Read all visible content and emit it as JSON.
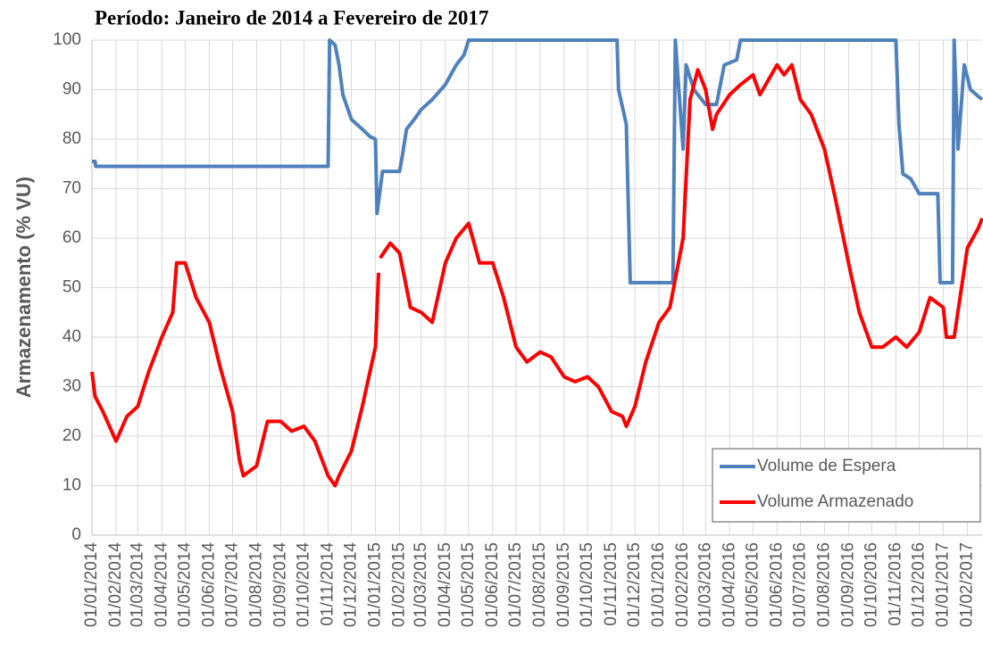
{
  "chart_data": {
    "type": "line",
    "title": "Período: Janeiro de 2014 a Fevereiro de 2017",
    "y_label": "Armazenamento (% VU)",
    "ylim": [
      0,
      100
    ],
    "yticks": [
      0,
      10,
      20,
      30,
      40,
      50,
      60,
      70,
      80,
      90,
      100
    ],
    "xlim": [
      "01/01/2014",
      "20/02/2017"
    ],
    "xticks": [
      "01/01/2014",
      "01/02/2014",
      "01/03/2014",
      "01/04/2014",
      "01/05/2014",
      "01/06/2014",
      "01/07/2014",
      "01/08/2014",
      "01/09/2014",
      "01/10/2014",
      "01/11/2014",
      "01/12/2014",
      "01/01/2015",
      "01/02/2015",
      "01/03/2015",
      "01/04/2015",
      "01/05/2015",
      "01/06/2015",
      "01/07/2015",
      "01/08/2015",
      "01/09/2015",
      "01/10/2015",
      "01/11/2015",
      "01/12/2015",
      "01/01/2016",
      "01/02/2016",
      "01/03/2016",
      "01/04/2016",
      "01/05/2016",
      "01/06/2016",
      "01/07/2016",
      "01/08/2016",
      "01/09/2016",
      "01/10/2016",
      "01/11/2016",
      "01/12/2016",
      "01/01/2017",
      "01/02/2017"
    ],
    "grid": true,
    "legend": "lower right",
    "series": [
      {
        "name": "Volume de Espera",
        "color": "#4f81bd",
        "x": [
          "01/01/2014",
          "05/01/2014",
          "06/01/2014",
          "01/11/2014",
          "03/11/2014",
          "10/11/2014",
          "15/11/2014",
          "20/11/2014",
          "01/12/2014",
          "15/12/2014",
          "25/12/2014",
          "01/01/2015",
          "03/01/2015",
          "10/01/2015",
          "01/02/2015",
          "05/02/2015",
          "10/02/2015",
          "20/02/2015",
          "01/03/2015",
          "15/03/2015",
          "01/04/2015",
          "15/04/2015",
          "25/04/2015",
          "01/05/2015",
          "08/11/2015",
          "10/11/2015",
          "20/11/2015",
          "25/11/2015",
          "19/01/2016",
          "22/01/2016",
          "01/02/2016",
          "05/02/2016",
          "15/02/2016",
          "01/03/2016",
          "15/03/2016",
          "25/03/2016",
          "10/04/2016",
          "15/04/2016",
          "01/11/2016",
          "05/11/2016",
          "10/11/2016",
          "20/11/2016",
          "01/12/2016",
          "25/12/2016",
          "28/12/2016",
          "13/01/2017",
          "15/01/2017",
          "20/01/2017",
          "28/01/2017",
          "05/02/2017",
          "20/02/2017"
        ],
        "values": [
          75.5,
          75.5,
          74.5,
          74.5,
          100,
          99,
          95,
          89,
          84,
          82,
          80.5,
          80,
          65,
          73.5,
          73.5,
          77,
          82,
          84,
          86,
          88,
          91,
          95,
          97,
          100,
          100,
          90,
          83,
          51,
          51,
          100,
          78,
          95,
          90,
          87,
          87,
          95,
          96,
          100,
          100,
          83,
          73,
          72,
          69,
          69,
          51,
          51,
          100,
          78,
          95,
          90,
          88
        ]
      },
      {
        "name": "Volume Armazenado",
        "color": "#ff0000",
        "x": [
          "01/01/2014",
          "05/01/2014",
          "15/01/2014",
          "01/02/2014",
          "15/02/2014",
          "01/03/2014",
          "15/03/2014",
          "01/04/2014",
          "15/04/2014",
          "20/04/2014",
          "01/05/2014",
          "15/05/2014",
          "01/06/2014",
          "15/06/2014",
          "01/07/2014",
          "10/07/2014",
          "15/07/2014",
          "01/08/2014",
          "15/08/2014",
          "01/09/2014",
          "15/09/2014",
          "01/10/2014",
          "15/10/2014",
          "01/11/2014",
          "10/11/2014",
          "15/11/2014",
          "01/12/2014",
          "15/12/2014",
          "01/01/2015",
          "05/01/2015",
          "06/01/2015",
          "07/01/2015",
          "20/01/2015",
          "01/02/2015",
          "15/02/2015",
          "01/03/2015",
          "15/03/2015",
          "01/04/2015",
          "15/04/2015",
          "01/05/2015",
          "15/05/2015",
          "01/06/2015",
          "15/06/2015",
          "01/07/2015",
          "15/07/2015",
          "01/08/2015",
          "15/08/2015",
          "01/09/2015",
          "15/09/2015",
          "01/10/2015",
          "15/10/2015",
          "01/11/2015",
          "15/11/2015",
          "20/11/2015",
          "01/12/2015",
          "15/12/2015",
          "01/01/2016",
          "15/01/2016",
          "01/02/2016",
          "10/02/2016",
          "20/02/2016",
          "01/03/2016",
          "10/03/2016",
          "15/03/2016",
          "01/04/2016",
          "15/04/2016",
          "01/05/2016",
          "10/05/2016",
          "01/06/2016",
          "10/06/2016",
          "20/06/2016",
          "01/07/2016",
          "15/07/2016",
          "01/08/2016",
          "15/08/2016",
          "01/09/2016",
          "15/09/2016",
          "01/10/2016",
          "15/10/2016",
          "01/11/2016",
          "15/11/2016",
          "01/12/2016",
          "15/12/2016",
          "01/01/2017",
          "05/01/2017",
          "15/01/2017",
          "01/02/2017",
          "15/02/2017",
          "20/02/2017"
        ],
        "values": [
          33,
          28,
          25,
          19,
          24,
          26,
          33,
          40,
          45,
          55,
          55,
          48,
          43,
          34,
          25,
          15,
          12,
          14,
          23,
          23,
          21,
          22,
          19,
          12,
          10,
          12,
          17,
          26,
          38,
          53,
          null,
          56,
          59,
          57,
          46,
          45,
          43,
          55,
          60,
          63,
          55,
          55,
          48,
          38,
          35,
          37,
          36,
          32,
          31,
          32,
          30,
          25,
          24,
          22,
          26,
          35,
          43,
          46,
          60,
          88,
          94,
          90,
          82,
          85,
          89,
          91,
          93,
          89,
          95,
          93,
          95,
          88,
          85,
          78,
          68,
          55,
          45,
          38,
          38,
          40,
          38,
          41,
          48,
          46,
          40,
          40,
          58,
          62,
          64
        ]
      }
    ]
  }
}
